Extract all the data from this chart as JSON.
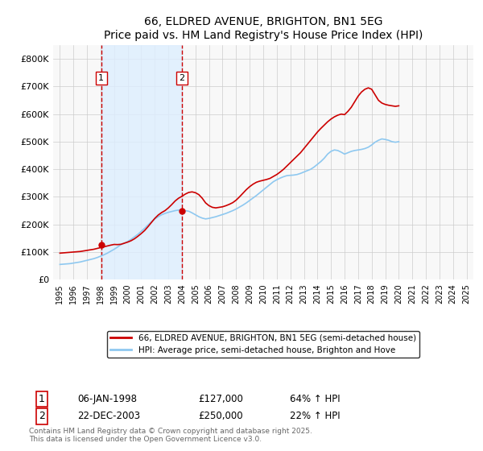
{
  "title": "66, ELDRED AVENUE, BRIGHTON, BN1 5EG",
  "subtitle": "Price paid vs. HM Land Registry's House Price Index (HPI)",
  "sale1_date_x": 1998.05,
  "sale2_date_x": 2004.0,
  "sale1_price": 127000,
  "sale2_price": 250000,
  "sale1_label": "1",
  "sale2_label": "2",
  "sale1_hpi": "64% ↑ HPI",
  "sale2_hpi": "22% ↑ HPI",
  "sale1_display": "06-JAN-1998",
  "sale2_display": "22-DEC-2003",
  "hpi_color": "#8ec8f0",
  "price_color": "#cc0000",
  "vline_color": "#cc0000",
  "shade_color": "#ddeeff",
  "grid_color": "#cccccc",
  "bg_color": "#f8f8f8",
  "legend1": "66, ELDRED AVENUE, BRIGHTON, BN1 5EG (semi-detached house)",
  "legend2": "HPI: Average price, semi-detached house, Brighton and Hove",
  "footnote": "Contains HM Land Registry data © Crown copyright and database right 2025.\nThis data is licensed under the Open Government Licence v3.0.",
  "hpi_data": [
    55000,
    56000,
    57000,
    58000,
    60000,
    62000,
    64000,
    67000,
    70000,
    73000,
    76000,
    80000,
    85000,
    90000,
    96000,
    103000,
    110000,
    118000,
    127000,
    132000,
    138000,
    146000,
    155000,
    164000,
    175000,
    186000,
    198000,
    210000,
    220000,
    228000,
    235000,
    240000,
    244000,
    247000,
    250000,
    252000,
    252000,
    250000,
    248000,
    242000,
    235000,
    228000,
    223000,
    220000,
    222000,
    225000,
    228000,
    232000,
    236000,
    240000,
    245000,
    250000,
    256000,
    263000,
    270000,
    278000,
    287000,
    296000,
    305000,
    315000,
    325000,
    335000,
    345000,
    355000,
    362000,
    368000,
    373000,
    377000,
    378000,
    379000,
    381000,
    385000,
    390000,
    395000,
    400000,
    408000,
    418000,
    428000,
    440000,
    455000,
    465000,
    470000,
    468000,
    462000,
    455000,
    460000,
    465000,
    468000,
    470000,
    472000,
    475000,
    480000,
    488000,
    498000,
    505000,
    510000,
    508000,
    505000,
    500000,
    498000,
    500000
  ],
  "price_data": [
    96000,
    97000,
    98000,
    99000,
    100000,
    101000,
    102000,
    104000,
    106000,
    108000,
    110000,
    113000,
    116000,
    119000,
    122000,
    125000,
    127500,
    127000,
    128000,
    132000,
    136000,
    141000,
    148000,
    157000,
    167000,
    178000,
    192000,
    207000,
    222000,
    234000,
    243000,
    250000,
    260000,
    272000,
    285000,
    295000,
    302000,
    310000,
    316000,
    318000,
    315000,
    308000,
    295000,
    278000,
    268000,
    262000,
    260000,
    262000,
    264000,
    268000,
    273000,
    279000,
    288000,
    300000,
    313000,
    326000,
    337000,
    346000,
    353000,
    357000,
    360000,
    363000,
    367000,
    374000,
    381000,
    390000,
    400000,
    412000,
    424000,
    436000,
    448000,
    460000,
    475000,
    490000,
    505000,
    520000,
    535000,
    548000,
    560000,
    572000,
    582000,
    590000,
    596000,
    600000,
    598000,
    610000,
    625000,
    645000,
    665000,
    680000,
    690000,
    695000,
    690000,
    670000,
    650000,
    640000,
    635000,
    632000,
    630000,
    628000,
    630000
  ],
  "x_start": 1995.0,
  "x_step": 0.25,
  "xlim": [
    1994.5,
    2025.5
  ],
  "ylim": [
    0,
    850000
  ]
}
